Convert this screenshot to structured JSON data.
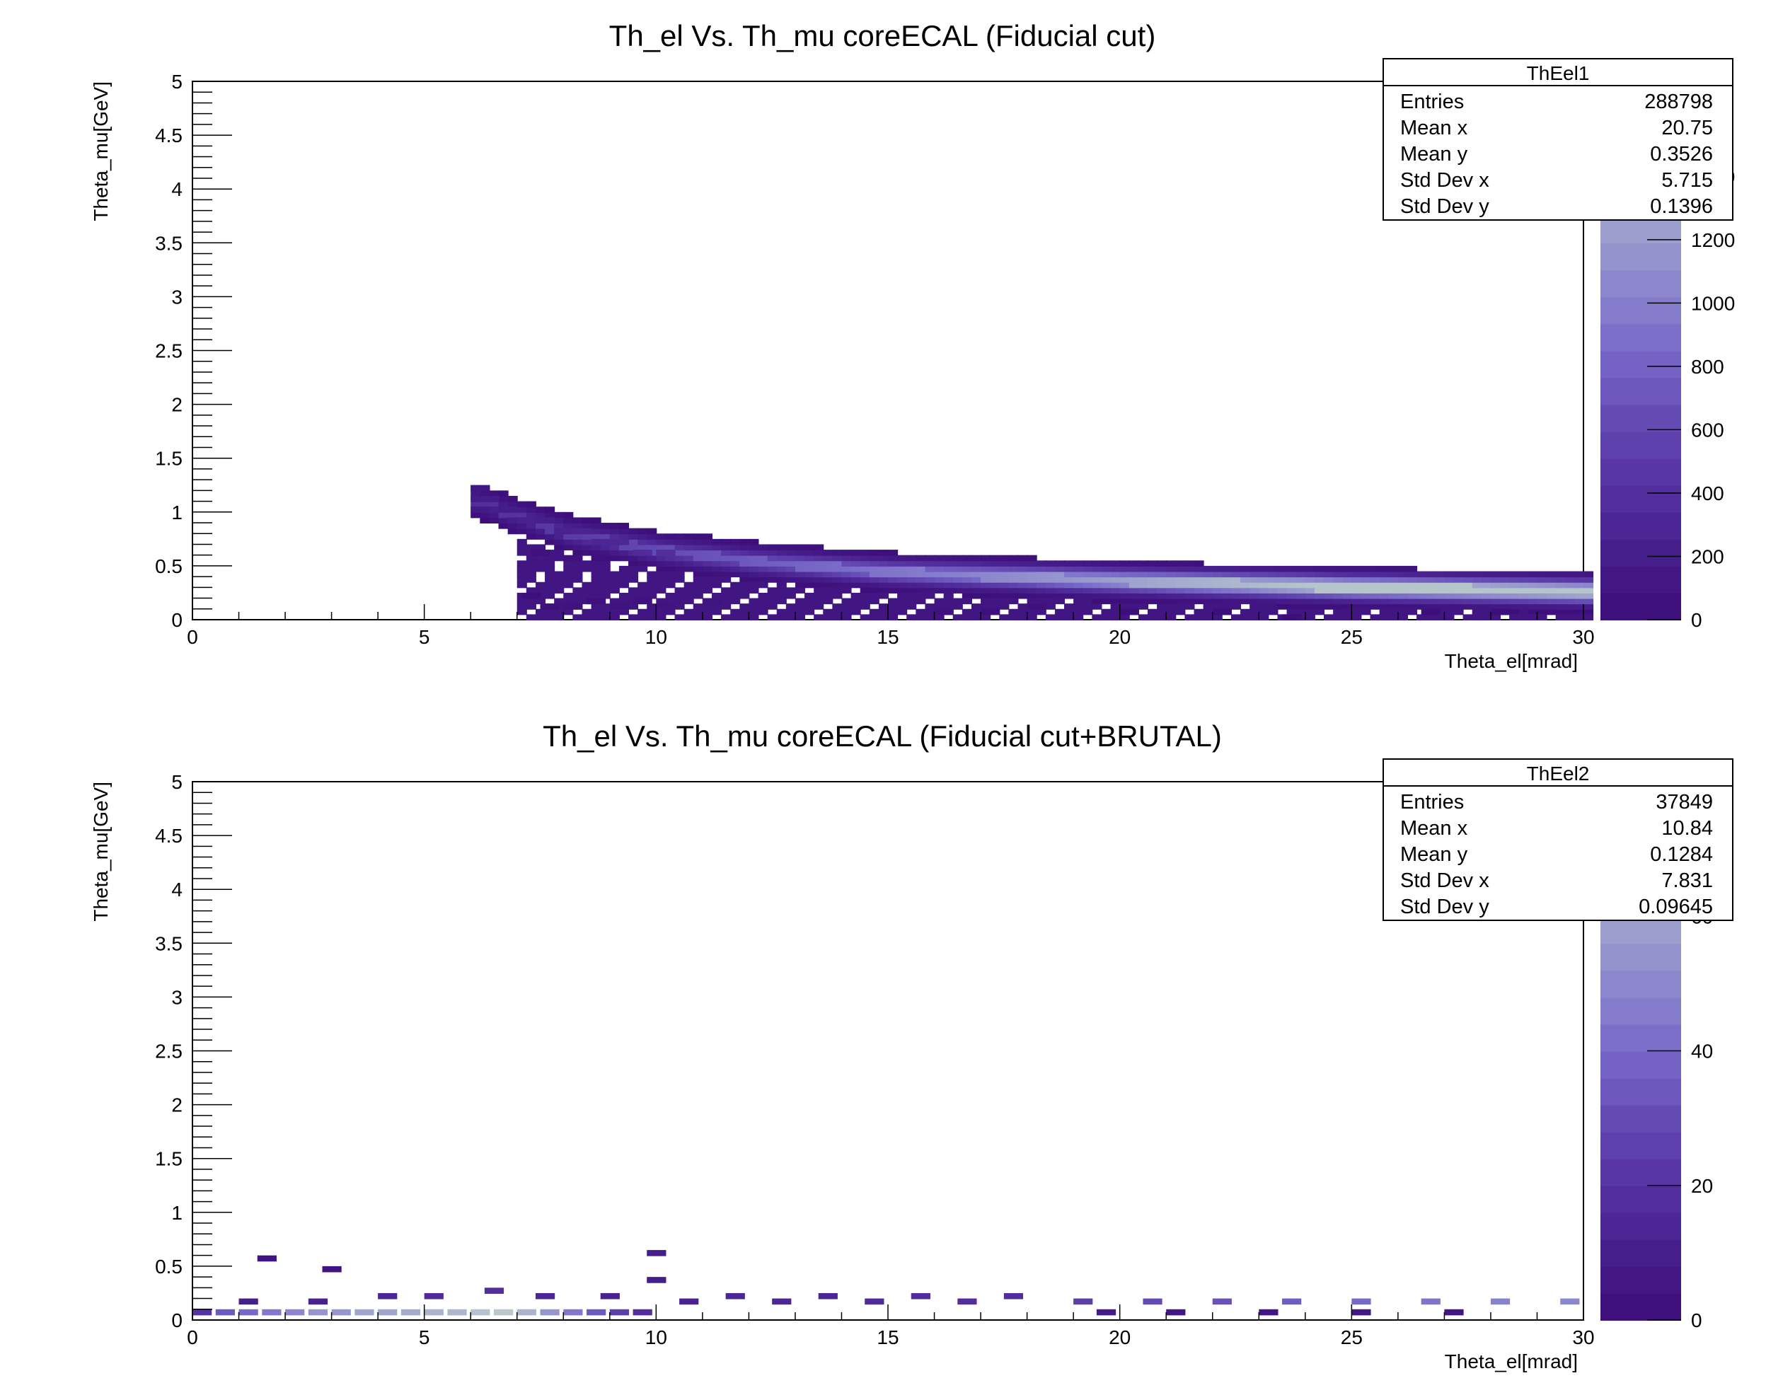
{
  "chart_data": [
    {
      "type": "heatmap",
      "title": "Th_el Vs. Th_mu coreECAL (Fiducial cut)",
      "xlabel": "Theta_el[mrad]",
      "ylabel": "Theta_mu[GeV]",
      "xlim": [
        0,
        30
      ],
      "ylim": [
        0,
        5
      ],
      "x_ticks": [
        "0",
        "5",
        "10",
        "15",
        "20",
        "25",
        "30"
      ],
      "y_ticks": [
        "0",
        "0.5",
        "1",
        "1.5",
        "2",
        "2.5",
        "3",
        "3.5",
        "4",
        "4.5",
        "5"
      ],
      "colorbar": {
        "min": 0,
        "max": 1700,
        "ticks": [
          "0",
          "200",
          "400",
          "600",
          "800",
          "1000",
          "1200",
          "1400"
        ]
      },
      "stats": {
        "name": "ThEel1",
        "rows": [
          {
            "label": "Entries",
            "value": "288798"
          },
          {
            "label": "Mean x",
            "value": "20.75"
          },
          {
            "label": "Mean y",
            "value": "0.3526"
          },
          {
            "label": "Std Dev x",
            "value": "5.715"
          },
          {
            "label": "Std Dev y",
            "value": "0.1396"
          }
        ]
      },
      "band_center": [
        [
          6.0,
          1.08
        ],
        [
          8,
          0.78
        ],
        [
          10,
          0.62
        ],
        [
          12,
          0.52
        ],
        [
          15,
          0.42
        ],
        [
          20,
          0.34
        ],
        [
          25,
          0.28
        ],
        [
          30,
          0.24
        ]
      ],
      "band_sigma": 0.1,
      "band_peak": 1500,
      "cells": [
        {
          "x": 6.0,
          "y": 1.2,
          "v": 120
        },
        {
          "x": 6.0,
          "y": 1.1,
          "v": 180
        },
        {
          "x": 6.0,
          "y": 1.0,
          "v": 160
        },
        {
          "x": 6.2,
          "y": 1.1,
          "v": 200
        },
        {
          "x": 6.4,
          "y": 1.0,
          "v": 220
        },
        {
          "x": 6.6,
          "y": 1.0,
          "v": 200
        },
        {
          "x": 6.8,
          "y": 0.9,
          "v": 210
        },
        {
          "x": 7.0,
          "y": 0.9,
          "v": 240
        },
        {
          "x": 7.4,
          "y": 0.9,
          "v": 220
        },
        {
          "x": 7.8,
          "y": 0.8,
          "v": 260
        },
        {
          "x": 8.2,
          "y": 0.8,
          "v": 280
        },
        {
          "x": 8.6,
          "y": 0.7,
          "v": 300
        },
        {
          "x": 9.0,
          "y": 0.7,
          "v": 310
        },
        {
          "x": 9.5,
          "y": 0.6,
          "v": 350
        },
        {
          "x": 10.0,
          "y": 0.6,
          "v": 380
        },
        {
          "x": 7.3,
          "y": 0.6,
          "v": 60
        },
        {
          "x": 8.0,
          "y": 0.55,
          "v": 60
        },
        {
          "x": 8.6,
          "y": 0.55,
          "v": 40
        },
        {
          "x": 7.1,
          "y": 0.2,
          "v": 40
        },
        {
          "x": 7.5,
          "y": 0.1,
          "v": 50
        },
        {
          "x": 8.0,
          "y": 0.1,
          "v": 60
        },
        {
          "x": 8.5,
          "y": 0.15,
          "v": 50
        },
        {
          "x": 9.0,
          "y": 0.1,
          "v": 70
        },
        {
          "x": 9.5,
          "y": 0.15,
          "v": 60
        },
        {
          "x": 10.0,
          "y": 0.1,
          "v": 80
        },
        {
          "x": 11.0,
          "y": 0.15,
          "v": 90
        },
        {
          "x": 12.0,
          "y": 0.1,
          "v": 100
        },
        {
          "x": 13.0,
          "y": 0.15,
          "v": 110
        },
        {
          "x": 14.0,
          "y": 0.1,
          "v": 100
        },
        {
          "x": 15.0,
          "y": 0.15,
          "v": 120
        },
        {
          "x": 16.0,
          "y": 0.05,
          "v": 60
        },
        {
          "x": 17.0,
          "y": 0.05,
          "v": 40
        },
        {
          "x": 18.0,
          "y": 0.1,
          "v": 50
        },
        {
          "x": 20.0,
          "y": 0.05,
          "v": 30
        },
        {
          "x": 22.0,
          "y": 0.05,
          "v": 30
        },
        {
          "x": 23.5,
          "y": 0.0,
          "v": 20
        },
        {
          "x": 26.5,
          "y": 0.05,
          "v": 20
        },
        {
          "x": 28.0,
          "y": 0.05,
          "v": 20
        }
      ]
    },
    {
      "type": "heatmap",
      "title": "Th_el Vs. Th_mu coreECAL (Fiducial cut+BRUTAL)",
      "xlabel": "Theta_el[mrad]",
      "ylabel": "Theta_mu[GeV]",
      "xlim": [
        0,
        30
      ],
      "ylim": [
        0,
        5
      ],
      "x_ticks": [
        "0",
        "5",
        "10",
        "15",
        "20",
        "25",
        "30"
      ],
      "y_ticks": [
        "0",
        "0.5",
        "1",
        "1.5",
        "2",
        "2.5",
        "3",
        "3.5",
        "4",
        "4.5",
        "5"
      ],
      "colorbar": {
        "min": 0,
        "max": 80,
        "ticks": [
          "0",
          "20",
          "40",
          "60"
        ]
      },
      "stats": {
        "name": "ThEel2",
        "rows": [
          {
            "label": "Entries",
            "value": "37849"
          },
          {
            "label": "Mean x",
            "value": "10.84"
          },
          {
            "label": "Mean y",
            "value": "0.1284"
          },
          {
            "label": "Std Dev x",
            "value": "7.831"
          },
          {
            "label": "Std Dev y",
            "value": "0.09645"
          }
        ]
      },
      "cells": [
        {
          "x": 0.0,
          "y": 0.05,
          "v": 20
        },
        {
          "x": 0.5,
          "y": 0.05,
          "v": 35
        },
        {
          "x": 1.0,
          "y": 0.05,
          "v": 40
        },
        {
          "x": 1.5,
          "y": 0.05,
          "v": 45
        },
        {
          "x": 2.0,
          "y": 0.05,
          "v": 50
        },
        {
          "x": 2.5,
          "y": 0.05,
          "v": 55
        },
        {
          "x": 3.0,
          "y": 0.05,
          "v": 55
        },
        {
          "x": 3.5,
          "y": 0.05,
          "v": 60
        },
        {
          "x": 4.0,
          "y": 0.05,
          "v": 60
        },
        {
          "x": 4.5,
          "y": 0.05,
          "v": 62
        },
        {
          "x": 5.0,
          "y": 0.05,
          "v": 65
        },
        {
          "x": 5.5,
          "y": 0.05,
          "v": 66
        },
        {
          "x": 6.0,
          "y": 0.05,
          "v": 70
        },
        {
          "x": 6.5,
          "y": 0.05,
          "v": 72
        },
        {
          "x": 7.0,
          "y": 0.05,
          "v": 65
        },
        {
          "x": 7.5,
          "y": 0.05,
          "v": 55
        },
        {
          "x": 8.0,
          "y": 0.05,
          "v": 45
        },
        {
          "x": 8.5,
          "y": 0.05,
          "v": 35
        },
        {
          "x": 9.0,
          "y": 0.05,
          "v": 25
        },
        {
          "x": 9.5,
          "y": 0.05,
          "v": 18
        },
        {
          "x": 1.0,
          "y": 0.15,
          "v": 10
        },
        {
          "x": 2.5,
          "y": 0.15,
          "v": 12
        },
        {
          "x": 4.0,
          "y": 0.2,
          "v": 14
        },
        {
          "x": 5.0,
          "y": 0.2,
          "v": 16
        },
        {
          "x": 6.3,
          "y": 0.25,
          "v": 18
        },
        {
          "x": 7.4,
          "y": 0.2,
          "v": 14
        },
        {
          "x": 8.8,
          "y": 0.2,
          "v": 12
        },
        {
          "x": 9.8,
          "y": 0.35,
          "v": 10
        },
        {
          "x": 9.8,
          "y": 0.6,
          "v": 10
        },
        {
          "x": 1.4,
          "y": 0.55,
          "v": 4
        },
        {
          "x": 2.8,
          "y": 0.45,
          "v": 4
        },
        {
          "x": 10.5,
          "y": 0.15,
          "v": 12
        },
        {
          "x": 11.5,
          "y": 0.2,
          "v": 14
        },
        {
          "x": 12.5,
          "y": 0.15,
          "v": 14
        },
        {
          "x": 13.5,
          "y": 0.2,
          "v": 14
        },
        {
          "x": 14.5,
          "y": 0.15,
          "v": 16
        },
        {
          "x": 15.5,
          "y": 0.2,
          "v": 18
        },
        {
          "x": 16.5,
          "y": 0.15,
          "v": 18
        },
        {
          "x": 17.5,
          "y": 0.2,
          "v": 18
        },
        {
          "x": 19.0,
          "y": 0.15,
          "v": 25
        },
        {
          "x": 20.5,
          "y": 0.15,
          "v": 30
        },
        {
          "x": 22.0,
          "y": 0.15,
          "v": 32
        },
        {
          "x": 23.5,
          "y": 0.15,
          "v": 36
        },
        {
          "x": 25.0,
          "y": 0.15,
          "v": 40
        },
        {
          "x": 26.5,
          "y": 0.15,
          "v": 44
        },
        {
          "x": 28.0,
          "y": 0.15,
          "v": 48
        },
        {
          "x": 29.5,
          "y": 0.15,
          "v": 50
        },
        {
          "x": 19.5,
          "y": 0.05,
          "v": 8
        },
        {
          "x": 21.0,
          "y": 0.05,
          "v": 6
        },
        {
          "x": 23.0,
          "y": 0.05,
          "v": 6
        },
        {
          "x": 25.0,
          "y": 0.05,
          "v": 6
        },
        {
          "x": 27.0,
          "y": 0.05,
          "v": 5
        }
      ]
    }
  ]
}
